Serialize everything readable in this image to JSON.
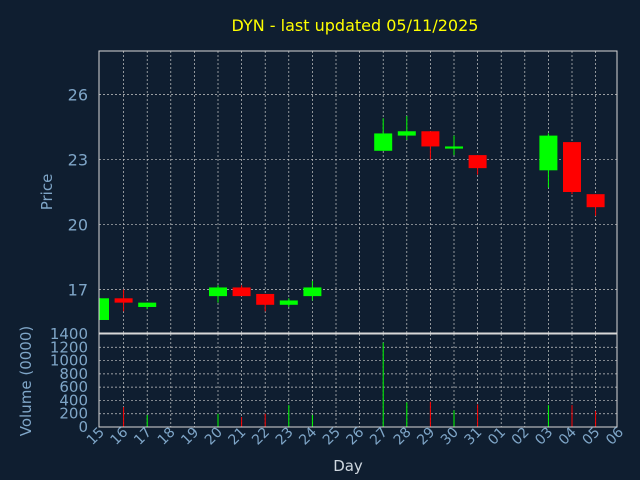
{
  "chart_data": {
    "type": "candlestick",
    "title": "DYN - last updated 05/11/2025",
    "colors": {
      "background": "#0f1e30",
      "title": "#ffff00",
      "axis_text": "#7fa6c8",
      "grid": "#c8c8c8",
      "up": "#00ff00",
      "down": "#ff0000",
      "frame": "#d8d8d8"
    },
    "price_panel": {
      "ylabel": "Price",
      "ylim": [
        15.0,
        28.0
      ],
      "yticks": [
        17,
        20,
        23,
        26
      ]
    },
    "volume_panel": {
      "ylabel": "Volume (0000)",
      "ylim": [
        0,
        1400
      ],
      "yticks": [
        0,
        200,
        400,
        600,
        800,
        1000,
        1200,
        1400
      ]
    },
    "xlabel": "Day",
    "x_tick_labels": [
      "15",
      "16",
      "17",
      "18",
      "19",
      "20",
      "21",
      "22",
      "23",
      "24",
      "25",
      "26",
      "27",
      "28",
      "29",
      "30",
      "31",
      "01",
      "02",
      "03",
      "04",
      "05",
      "06"
    ],
    "candles": [
      {
        "day": "15",
        "open": 15.6,
        "high": 16.6,
        "low": 15.6,
        "close": 16.6,
        "volume": 0
      },
      {
        "day": "16",
        "open": 16.6,
        "high": 17.0,
        "low": 16.0,
        "close": 16.4,
        "volume": 300
      },
      {
        "day": "17",
        "open": 16.2,
        "high": 16.4,
        "low": 16.1,
        "close": 16.4,
        "volume": 180
      },
      {
        "day": "20",
        "open": 16.7,
        "high": 17.2,
        "low": 16.4,
        "close": 17.1,
        "volume": 200
      },
      {
        "day": "21",
        "open": 17.1,
        "high": 17.2,
        "low": 16.7,
        "close": 16.7,
        "volume": 150
      },
      {
        "day": "22",
        "open": 16.8,
        "high": 16.8,
        "low": 16.0,
        "close": 16.3,
        "volume": 200
      },
      {
        "day": "23",
        "open": 16.3,
        "high": 16.6,
        "low": 16.2,
        "close": 16.5,
        "volume": 330
      },
      {
        "day": "24",
        "open": 16.7,
        "high": 17.4,
        "low": 16.5,
        "close": 17.1,
        "volume": 180
      },
      {
        "day": "27",
        "open": 23.4,
        "high": 24.9,
        "low": 23.4,
        "close": 24.2,
        "volume": 1270
      },
      {
        "day": "28",
        "open": 24.1,
        "high": 25.0,
        "low": 23.9,
        "close": 24.3,
        "volume": 370
      },
      {
        "day": "29",
        "open": 24.3,
        "high": 24.3,
        "low": 23.0,
        "close": 23.6,
        "volume": 380
      },
      {
        "day": "30",
        "open": 23.5,
        "high": 24.1,
        "low": 23.2,
        "close": 23.6,
        "volume": 250
      },
      {
        "day": "31",
        "open": 23.2,
        "high": 23.2,
        "low": 22.3,
        "close": 22.6,
        "volume": 340
      },
      {
        "day": "03",
        "open": 22.5,
        "high": 24.2,
        "low": 21.7,
        "close": 24.1,
        "volume": 330
      },
      {
        "day": "04",
        "open": 23.8,
        "high": 23.8,
        "low": 21.4,
        "close": 21.5,
        "volume": 330
      },
      {
        "day": "05",
        "open": 21.4,
        "high": 21.4,
        "low": 20.4,
        "close": 20.8,
        "volume": 240
      }
    ]
  }
}
